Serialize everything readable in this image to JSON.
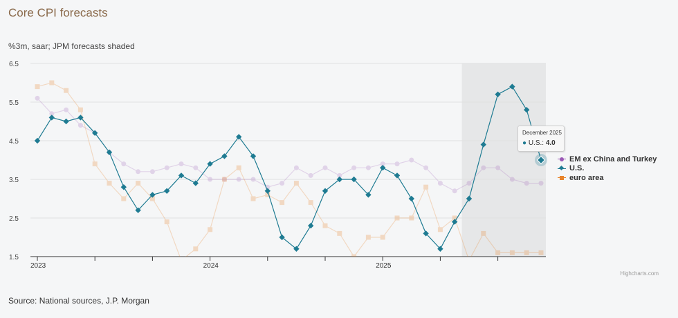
{
  "header": {
    "title": "Core CPI forecasts",
    "subtitle": "%3m, saar; JPM forecasts shaded"
  },
  "footer": {
    "source": "Source: National sources, J.P. Morgan",
    "credits": "Highcharts.com"
  },
  "tooltip": {
    "date": "December 2025",
    "series": "U.S.",
    "value": "4.0"
  },
  "colors": {
    "em": "#9b59b6",
    "us": "#1e7b92",
    "ea": "#e8832a",
    "forecast_shade": "#e6e7e8"
  },
  "chart_data": {
    "type": "line",
    "title": "Core CPI forecasts",
    "subtitle": "%3m, saar; JPM forecasts shaded",
    "y_ticks": [
      "6.5",
      "5.5",
      "4.5",
      "3.5",
      "2.5",
      "1.5"
    ],
    "ylim": [
      1.5,
      6.5
    ],
    "x_start": "2023-01",
    "x_labels": [
      {
        "label": "2023",
        "month_index": 0
      },
      {
        "label": "2024",
        "month_index": 12
      },
      {
        "label": "2025",
        "month_index": 24
      }
    ],
    "x_max_index": 35.5,
    "forecast_start_index": 29.5,
    "highlight": {
      "series": "U.S.",
      "month_index": 35,
      "value": 4.0
    },
    "series": [
      {
        "name": "EM ex China and Turkey",
        "symbol": "circle",
        "values": [
          5.6,
          5.2,
          5.3,
          4.9,
          4.7,
          4.2,
          3.9,
          3.7,
          3.7,
          3.8,
          3.9,
          3.8,
          3.5,
          3.5,
          3.5,
          3.5,
          3.3,
          3.4,
          3.8,
          3.6,
          3.8,
          3.6,
          3.8,
          3.8,
          3.9,
          3.9,
          4.0,
          3.8,
          3.4,
          3.2,
          3.4,
          3.8,
          3.8,
          3.5,
          3.4,
          3.4
        ]
      },
      {
        "name": "U.S.",
        "symbol": "diamond",
        "values": [
          4.5,
          5.1,
          5.0,
          5.1,
          4.7,
          4.2,
          3.3,
          2.7,
          3.1,
          3.2,
          3.6,
          3.4,
          3.9,
          4.1,
          4.6,
          4.1,
          3.2,
          2.0,
          1.7,
          2.3,
          3.2,
          3.5,
          3.5,
          3.1,
          3.8,
          3.6,
          3.0,
          2.1,
          1.7,
          2.4,
          3.0,
          4.4,
          5.7,
          5.9,
          5.3,
          4.0
        ]
      },
      {
        "name": "euro area",
        "symbol": "square",
        "values": [
          5.9,
          6.0,
          5.8,
          5.3,
          3.9,
          3.4,
          3.0,
          3.4,
          3.0,
          2.4,
          1.4,
          1.7,
          2.2,
          3.5,
          3.8,
          3.0,
          3.1,
          2.9,
          3.4,
          2.9,
          2.3,
          2.1,
          1.5,
          2.0,
          2.0,
          2.5,
          2.5,
          3.3,
          2.2,
          2.5,
          1.4,
          2.1,
          1.6,
          1.6,
          1.6,
          1.6
        ]
      }
    ]
  }
}
